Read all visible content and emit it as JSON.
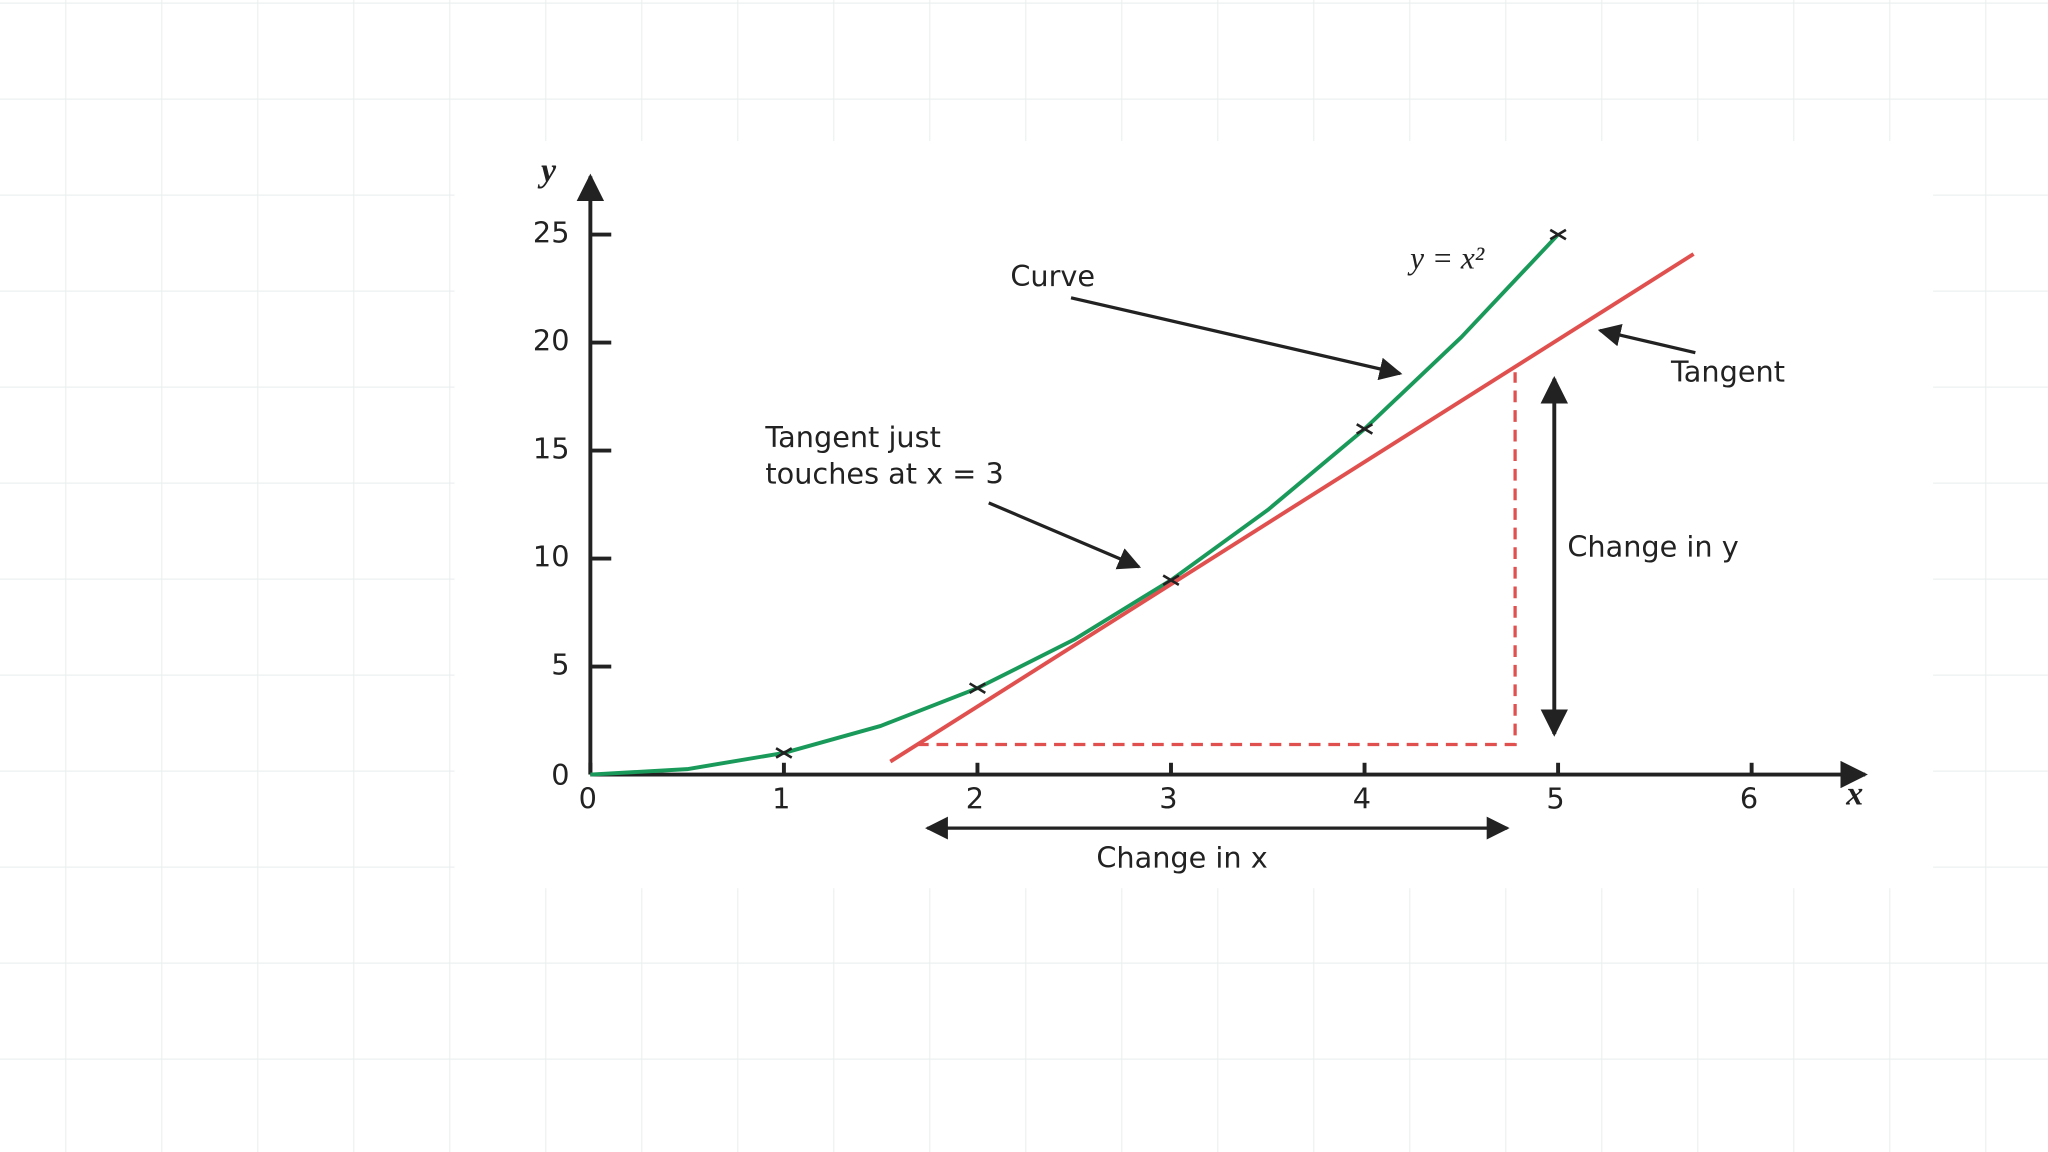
{
  "chart_data": {
    "type": "line",
    "x_label": "x",
    "y_label": "y",
    "xlim": [
      0,
      6.6
    ],
    "ylim": [
      0,
      28
    ],
    "xticks": [
      0,
      1,
      2,
      3,
      4,
      5,
      6
    ],
    "yticks": [
      0,
      5,
      10,
      15,
      20,
      25
    ],
    "series": [
      {
        "name": "y = x²",
        "color": "#1a9a5a",
        "x": [
          0,
          0.5,
          1,
          1.5,
          2,
          2.5,
          3,
          3.5,
          4,
          4.5,
          5
        ],
        "values": [
          0,
          0.25,
          1,
          2.25,
          4,
          6.25,
          9,
          12.25,
          16,
          20.25,
          25
        ]
      },
      {
        "name": "Tangent",
        "color": "#e0504f",
        "x": [
          1.55,
          5.7
        ],
        "values": [
          0.6,
          24.1
        ]
      },
      {
        "color": "#222222",
        "marker": "x",
        "x": [
          1,
          2,
          3,
          4,
          5
        ],
        "values": [
          1,
          4,
          9,
          16,
          25
        ]
      }
    ],
    "annotations": {
      "curve": "Curve",
      "tangent_note": [
        "Tangent just",
        "touches at x = 3"
      ],
      "change_y": "Change in y",
      "change_x": "Change in x"
    }
  }
}
